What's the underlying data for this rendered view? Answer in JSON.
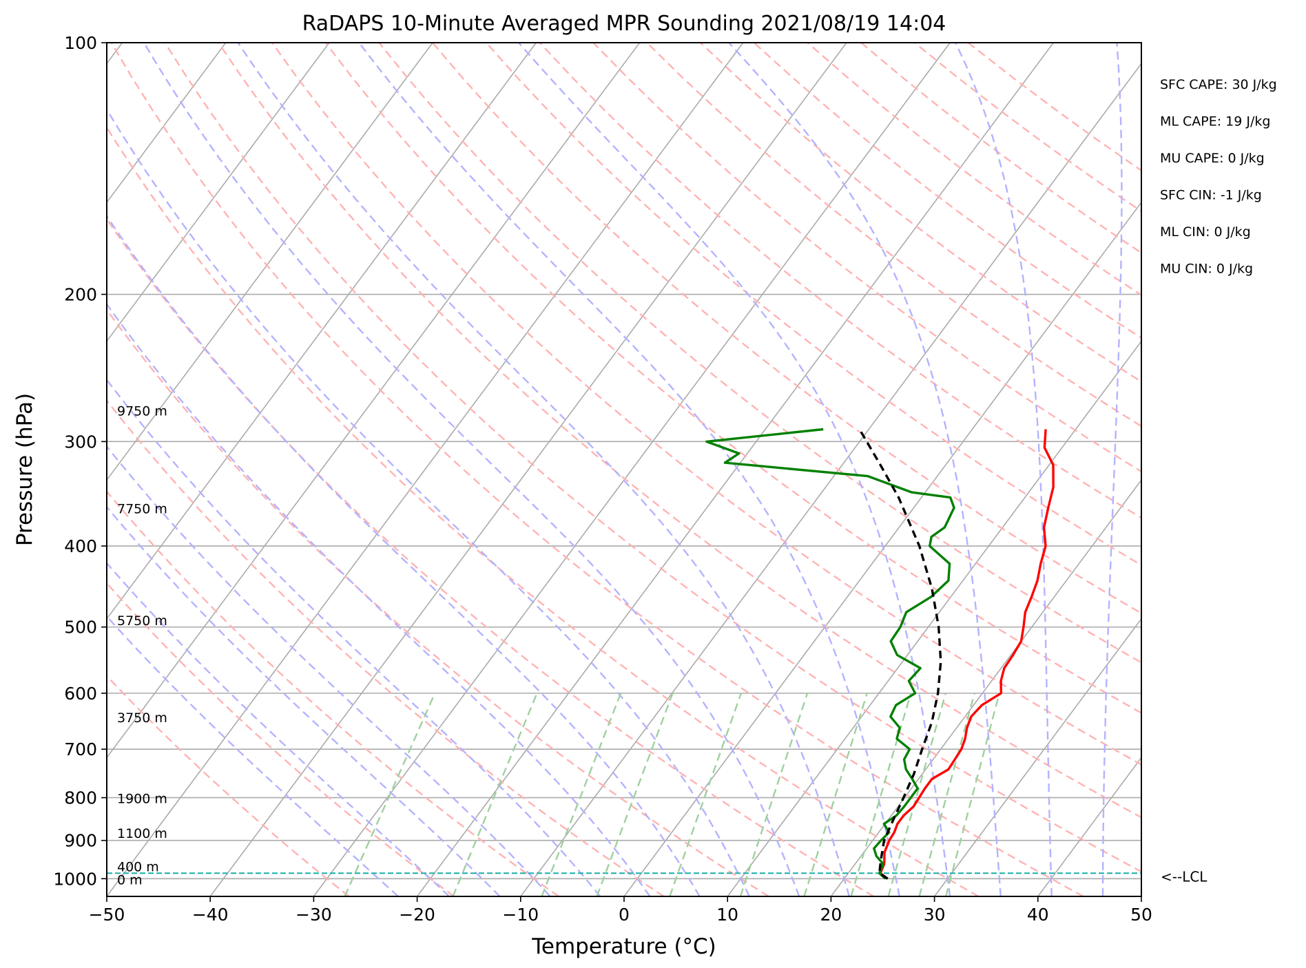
{
  "chart_data": {
    "type": "line",
    "title": "RaDAPS 10-Minute Averaged MPR Sounding 2021/08/19 14:04",
    "xlabel": "Temperature (°C)",
    "ylabel": "Pressure (hPa)",
    "xlim": [
      -50,
      50
    ],
    "ylim": [
      1050,
      100
    ],
    "y_scale": "log",
    "skew": "skew-T",
    "grid": true,
    "x_ticks": [
      "−50",
      "−40",
      "−30",
      "−20",
      "−10",
      "0",
      "10",
      "20",
      "30",
      "40",
      "50"
    ],
    "x_tick_values": [
      -50,
      -40,
      -30,
      -20,
      -10,
      0,
      10,
      20,
      30,
      40,
      50
    ],
    "y_ticks": [
      "100",
      "200",
      "300",
      "400",
      "500",
      "600",
      "700",
      "800",
      "900",
      "1000"
    ],
    "y_tick_values": [
      100,
      200,
      300,
      400,
      500,
      600,
      700,
      800,
      900,
      1000
    ],
    "series": [
      {
        "color": "#ff0000",
        "pressure": [
          1000,
          985,
          960,
          930,
          900,
          880,
          860,
          840,
          820,
          800,
          780,
          760,
          740,
          720,
          700,
          680,
          660,
          640,
          620,
          600,
          580,
          560,
          540,
          520,
          500,
          480,
          460,
          440,
          420,
          400,
          380,
          360,
          340,
          320,
          305,
          290
        ],
        "temperature": [
          24.2,
          23.1,
          22.8,
          22.0,
          21.6,
          21.5,
          21.2,
          21.2,
          21.5,
          21.4,
          21.3,
          21.3,
          22.2,
          22.1,
          22.0,
          21.6,
          21.0,
          20.6,
          20.8,
          21.8,
          20.9,
          20.3,
          20.2,
          20.0,
          19.2,
          18.3,
          17.8,
          17.2,
          16.3,
          15.5,
          14.0,
          13.0,
          12.0,
          10.4,
          8.3,
          7.1
        ]
      },
      {
        "color": "#008000",
        "pressure": [
          1000,
          985,
          960,
          940,
          920,
          900,
          880,
          860,
          840,
          820,
          800,
          780,
          760,
          740,
          720,
          700,
          680,
          660,
          640,
          620,
          600,
          580,
          560,
          540,
          520,
          500,
          480,
          460,
          440,
          420,
          400,
          390,
          380,
          360,
          350,
          345,
          330,
          318,
          310,
          300,
          290
        ],
        "temperature": [
          24.0,
          23.0,
          22.7,
          21.5,
          20.7,
          20.8,
          21.0,
          19.9,
          20.5,
          20.6,
          20.6,
          20.6,
          19.4,
          18.1,
          17.2,
          17.0,
          15.0,
          14.5,
          12.8,
          12.5,
          13.5,
          12.0,
          12.2,
          9.0,
          7.4,
          7.3,
          6.8,
          8.1,
          8.6,
          7.5,
          4.3,
          3.8,
          4.4,
          3.9,
          2.8,
          -1.3,
          -6.7,
          -21.5,
          -20.8,
          -24.8,
          -14.4
        ]
      },
      {
        "color": "#000000",
        "dashed": true,
        "pressure": [
          1000,
          985,
          950,
          900,
          850,
          800,
          750,
          700,
          650,
          600,
          550,
          500,
          450,
          400,
          350,
          320,
          290
        ],
        "temperature": [
          24.2,
          23.0,
          22.2,
          21.1,
          20.5,
          19.9,
          19.2,
          18.2,
          17.2,
          15.7,
          13.7,
          11.0,
          7.6,
          3.3,
          -2.2,
          -6.3,
          -10.9
        ]
      }
    ],
    "height_labels": [
      {
        "text": "9750 m",
        "pressure": 275
      },
      {
        "text": "7750 m",
        "pressure": 360
      },
      {
        "text": "5750 m",
        "pressure": 490
      },
      {
        "text": "3750 m",
        "pressure": 640
      },
      {
        "text": "1900 m",
        "pressure": 800
      },
      {
        "text": "1100 m",
        "pressure": 880
      },
      {
        "text": "400 m",
        "pressure": 965
      },
      {
        "text": "0 m",
        "pressure": 1000
      }
    ],
    "lcl": {
      "label": "<--LCL",
      "pressure": 985
    },
    "annotations": [
      "SFC CAPE: 30 J/kg",
      "ML CAPE: 19 J/kg",
      "MU CAPE: 0 J/kg",
      "SFC CIN: -1 J/kg",
      "ML CIN: 0 J/kg",
      "MU CIN: 0 J/kg"
    ],
    "colors": {
      "isotherm": "#aaaaaa",
      "grid": "#aaaaaa",
      "dry_adiabat": "#ffb3b3",
      "moist_adiabat": "#b3b3ff",
      "mixing_ratio": "#9fd09f",
      "lcl": "#20b2aa"
    }
  }
}
